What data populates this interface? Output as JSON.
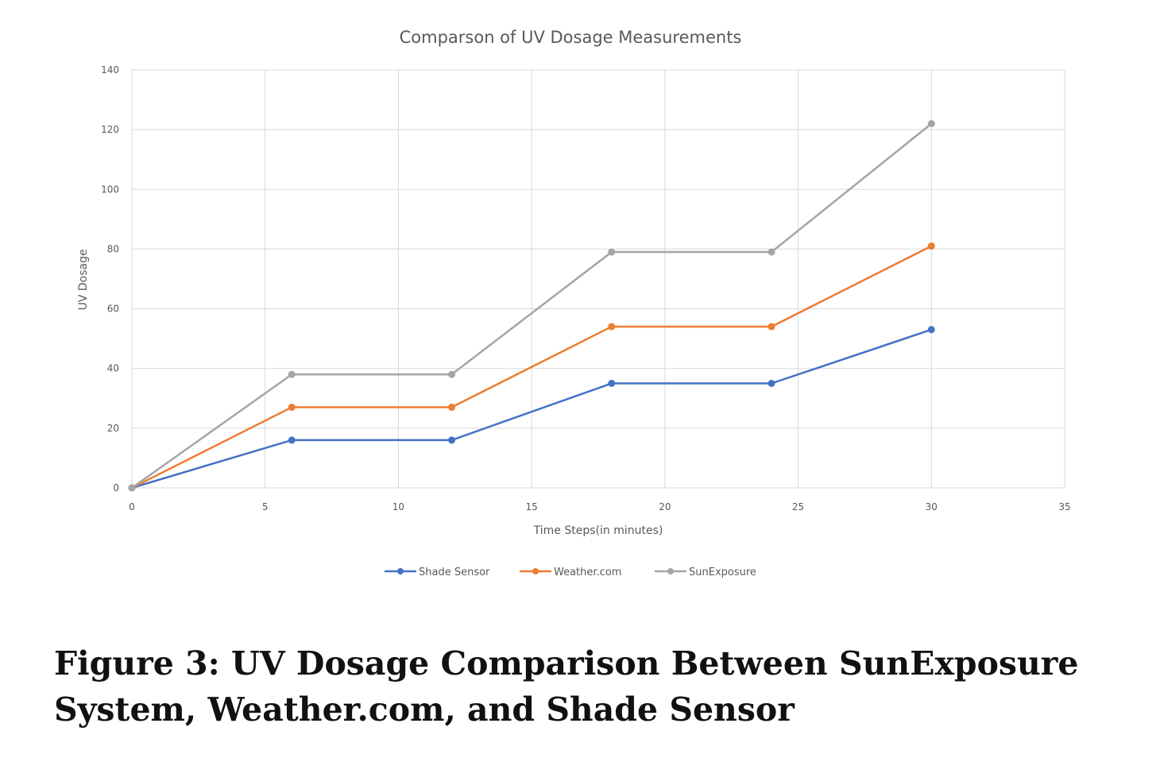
{
  "caption": "Figure 3: UV Dosage Comparison Between SunExposure System, Weather.com, and Shade Sensor",
  "chart_data": {
    "type": "line",
    "title": "Comparson of UV Dosage Measurements",
    "xlabel": "Time Steps(in minutes)",
    "ylabel": "UV Dosage",
    "xlim": [
      0,
      35
    ],
    "ylim": [
      0,
      140
    ],
    "x_ticks": [
      0,
      5,
      10,
      15,
      20,
      25,
      30,
      35
    ],
    "y_ticks": [
      0,
      20,
      40,
      60,
      80,
      100,
      120,
      140
    ],
    "grid": true,
    "legend_position": "bottom",
    "x": [
      0,
      6,
      12,
      18,
      24,
      30
    ],
    "series": [
      {
        "name": "Shade Sensor",
        "color": "#4472c4",
        "values": [
          0,
          16,
          16,
          35,
          35,
          53
        ]
      },
      {
        "name": "Weather.com",
        "color": "#ed7d31",
        "values": [
          0,
          27,
          27,
          54,
          54,
          81
        ]
      },
      {
        "name": "SunExposure",
        "color": "#a5a5a5",
        "values": [
          0,
          38,
          38,
          79,
          79,
          122
        ]
      }
    ]
  }
}
